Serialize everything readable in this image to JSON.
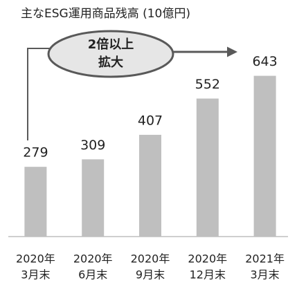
{
  "chart_data": {
    "type": "bar",
    "title": "主なESG運用商品残高 (10億円)",
    "categories": [
      [
        "2020年",
        "3月末"
      ],
      [
        "2020年",
        "6月末"
      ],
      [
        "2020年",
        "9月末"
      ],
      [
        "2020年",
        "12月末"
      ],
      [
        "2021年",
        "3月末"
      ]
    ],
    "values": [
      279,
      309,
      407,
      552,
      643
    ],
    "color": "#bfbfbf",
    "ylim": [
      0,
      700
    ],
    "annotation": [
      "2倍以上",
      "拡大"
    ]
  }
}
